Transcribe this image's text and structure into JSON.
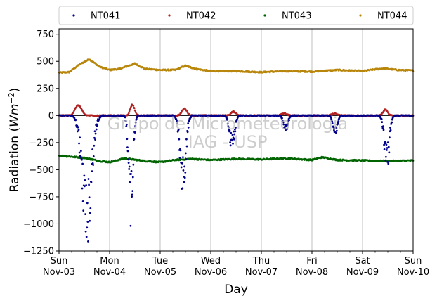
{
  "chart_data": {
    "type": "scatter",
    "xlabel": "Day",
    "ylabel_main": "Radiation (",
    "ylabel_unit": "Wm",
    "ylabel_exp": "−2",
    "ylabel_close": ")",
    "ylim": [
      -1250,
      800
    ],
    "yticks": [
      -1250,
      -1000,
      -750,
      -500,
      -250,
      0,
      250,
      500,
      750
    ],
    "ytick_labels": [
      "−1250",
      "−1000",
      "−750",
      "−500",
      "−250",
      "0",
      "250",
      "500",
      "750"
    ],
    "xlim": [
      0,
      7
    ],
    "xticks": [
      0,
      1,
      2,
      3,
      4,
      5,
      6,
      7
    ],
    "xtick_labels": [
      [
        "Sun",
        "Nov-03"
      ],
      [
        "Mon",
        "Nov-04"
      ],
      [
        "Tue",
        "Nov-05"
      ],
      [
        "Wed",
        "Nov-06"
      ],
      [
        "Thu",
        "Nov-07"
      ],
      [
        "Fri",
        "Nov-08"
      ],
      [
        "Sat",
        "Nov-09"
      ],
      [
        "Sun",
        "Nov-10"
      ]
    ],
    "grid_x": true,
    "zero_line": true,
    "legend_position": "top",
    "watermark_lines": [
      "Grupo de Micrometeorologia",
      "IAG - USP"
    ],
    "series": [
      {
        "name": "NT041",
        "color": "#00008b",
        "baseline": 0,
        "dips": [
          [
            0.55,
            -1050,
            0.13
          ],
          [
            1.42,
            -900,
            0.06
          ],
          [
            2.45,
            -650,
            0.08
          ],
          [
            3.42,
            -300,
            0.07
          ],
          [
            4.48,
            -150,
            0.06
          ],
          [
            5.46,
            -170,
            0.06
          ],
          [
            6.48,
            -470,
            0.07
          ]
        ]
      },
      {
        "name": "NT042",
        "color": "#b22222",
        "baseline": 0,
        "bumps": [
          [
            0.38,
            95,
            0.09
          ],
          [
            1.45,
            100,
            0.06
          ],
          [
            2.48,
            65,
            0.07
          ],
          [
            3.45,
            35,
            0.07
          ],
          [
            4.45,
            20,
            0.07
          ],
          [
            5.45,
            20,
            0.07
          ],
          [
            6.45,
            55,
            0.06
          ]
        ]
      },
      {
        "name": "NT043",
        "color": "#006400",
        "baseline": -410,
        "wave": [
          [
            0.0,
            -370
          ],
          [
            0.5,
            -390
          ],
          [
            0.8,
            -420
          ],
          [
            1.0,
            -430
          ],
          [
            1.3,
            -395
          ],
          [
            1.7,
            -420
          ],
          [
            2.0,
            -430
          ],
          [
            2.3,
            -410
          ],
          [
            2.6,
            -400
          ],
          [
            3.0,
            -410
          ],
          [
            3.5,
            -400
          ],
          [
            4.0,
            -405
          ],
          [
            4.5,
            -395
          ],
          [
            5.0,
            -410
          ],
          [
            5.2,
            -385
          ],
          [
            5.5,
            -410
          ],
          [
            6.0,
            -415
          ],
          [
            6.5,
            -420
          ],
          [
            7.0,
            -415
          ]
        ]
      },
      {
        "name": "NT044",
        "color": "#b8860b",
        "baseline": 410,
        "wave": [
          [
            0.0,
            395
          ],
          [
            0.2,
            400
          ],
          [
            0.4,
            470
          ],
          [
            0.6,
            520
          ],
          [
            0.8,
            450
          ],
          [
            1.0,
            420
          ],
          [
            1.2,
            430
          ],
          [
            1.5,
            480
          ],
          [
            1.7,
            430
          ],
          [
            2.0,
            420
          ],
          [
            2.3,
            420
          ],
          [
            2.5,
            460
          ],
          [
            2.7,
            430
          ],
          [
            3.0,
            410
          ],
          [
            3.5,
            410
          ],
          [
            4.0,
            400
          ],
          [
            4.5,
            410
          ],
          [
            5.0,
            405
          ],
          [
            5.5,
            420
          ],
          [
            6.0,
            410
          ],
          [
            6.4,
            435
          ],
          [
            6.7,
            420
          ],
          [
            7.0,
            415
          ]
        ]
      }
    ]
  }
}
